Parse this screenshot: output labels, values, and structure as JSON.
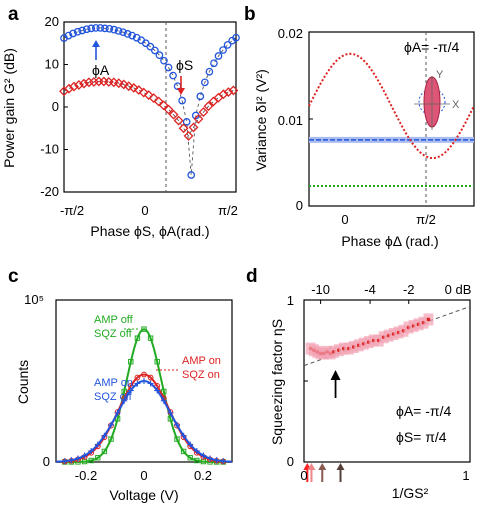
{
  "panels": {
    "a": {
      "label": "a"
    },
    "b": {
      "label": "b"
    },
    "c": {
      "label": "c"
    },
    "d": {
      "label": "d"
    }
  },
  "chart_data": [
    {
      "panel": "a",
      "type": "scatter",
      "xlabel": "Phase ϕS, ϕA(rad.)",
      "ylabel": "Power gain G² (dB)",
      "xlim": [
        -1.5708,
        1.5708
      ],
      "ylim": [
        -20,
        20
      ],
      "xticks": [
        {
          "v": -1.5708,
          "label": "-π/2"
        },
        {
          "v": 0,
          "label": "0"
        },
        {
          "v": 1.5708,
          "label": "π/2"
        }
      ],
      "yticks": [
        -20,
        -10,
        0,
        10,
        20
      ],
      "annotations": [
        "ϕA",
        "ϕS"
      ],
      "series": [
        {
          "color": "#2255dd",
          "marker": "circle",
          "x": [
            -1.571,
            -1.488,
            -1.405,
            -1.322,
            -1.239,
            -1.156,
            -1.073,
            -0.99,
            -0.907,
            -0.824,
            -0.741,
            -0.658,
            -0.575,
            -0.492,
            -0.409,
            -0.326,
            -0.243,
            -0.16,
            -0.077,
            0.006,
            0.089,
            0.172,
            0.255,
            0.338,
            0.421,
            0.504,
            0.587,
            0.67,
            0.753,
            0.836,
            0.919,
            1.002,
            1.085,
            1.168,
            1.251,
            1.334,
            1.417,
            1.5,
            1.571
          ],
          "y": [
            16.2,
            16.8,
            17.3,
            17.7,
            18.0,
            18.3,
            18.5,
            18.6,
            18.6,
            18.5,
            18.4,
            18.2,
            17.9,
            17.6,
            17.2,
            16.8,
            16.3,
            15.7,
            15.0,
            14.2,
            13.3,
            12.2,
            10.9,
            9.3,
            7.4,
            4.9,
            1.5,
            -3.5,
            -16.0,
            -2.0,
            2.5,
            5.8,
            8.3,
            10.3,
            12.0,
            13.4,
            14.6,
            15.6,
            16.3
          ]
        },
        {
          "color": "#dd2222",
          "marker": "diamond",
          "x": [
            -1.571,
            -1.48,
            -1.389,
            -1.298,
            -1.207,
            -1.116,
            -1.025,
            -0.934,
            -0.843,
            -0.752,
            -0.661,
            -0.57,
            -0.479,
            -0.388,
            -0.297,
            -0.206,
            -0.115,
            -0.024,
            0.067,
            0.158,
            0.249,
            0.34,
            0.431,
            0.522,
            0.613,
            0.704,
            0.795,
            0.886,
            0.977,
            1.068,
            1.159,
            1.25,
            1.341,
            1.432,
            1.523
          ],
          "y": [
            3.7,
            4.3,
            4.8,
            5.2,
            5.5,
            5.8,
            5.9,
            6.0,
            6.0,
            5.9,
            5.8,
            5.6,
            5.3,
            4.9,
            4.5,
            4.0,
            3.4,
            2.8,
            2.1,
            1.3,
            0.4,
            -0.6,
            -1.8,
            -3.2,
            -5.0,
            -6.8,
            -4.8,
            -2.8,
            -1.2,
            0.2,
            1.3,
            2.2,
            3.0,
            3.5,
            3.9
          ]
        }
      ]
    },
    {
      "panel": "b",
      "type": "line",
      "xlabel": "Phase ϕΔ (rad.)",
      "ylabel": "Variance δI² (V²)",
      "xlim": [
        -0.785,
        2.356
      ],
      "ylim": [
        0,
        0.02
      ],
      "xticks": [
        {
          "v": 0,
          "label": "0"
        },
        {
          "v": 1.5708,
          "label": "π/2"
        }
      ],
      "yticks": [
        {
          "v": 0,
          "label": "0"
        },
        {
          "v": 0.01,
          "label": "0.01"
        },
        {
          "v": 0.02,
          "label": "0.02"
        }
      ],
      "annotation": "ϕA= -π/4",
      "inset_axes": [
        "Y",
        "X"
      ],
      "series": [
        {
          "color": "#dd2222",
          "style": "dotted-line",
          "peak": 0.0175,
          "trough": 0.0055
        },
        {
          "color": "#2255dd",
          "style": "band",
          "value": 0.0076
        },
        {
          "color": "#22aa22",
          "style": "dotted-line",
          "value": 0.0023
        }
      ]
    },
    {
      "panel": "c",
      "type": "line",
      "xlabel": "Voltage (V)",
      "ylabel": "Counts",
      "xlim": [
        -0.3,
        0.3
      ],
      "ylim": [
        0,
        100000
      ],
      "xticks": [
        {
          "v": -0.2,
          "label": "-0.2"
        },
        {
          "v": 0,
          "label": "0"
        },
        {
          "v": 0.2,
          "label": "0.2"
        }
      ],
      "yticks": [
        {
          "v": 0,
          "label": "0"
        },
        {
          "v": 100000,
          "label": "10⁵"
        }
      ],
      "series": [
        {
          "name": "AMP off SQZ off",
          "color": "#22aa22",
          "marker": "square",
          "peak": 82000,
          "sigma": 0.06
        },
        {
          "name": "AMP on SQZ on",
          "color": "#dd2222",
          "marker": "circle",
          "peak": 54000,
          "sigma": 0.085
        },
        {
          "name": "AMP on SQZ off",
          "color": "#2255dd",
          "marker": "plus",
          "peak": 50000,
          "sigma": 0.09
        }
      ],
      "legend_labels": [
        {
          "line1": "AMP off",
          "line2": "SQZ off",
          "color": "#22aa22"
        },
        {
          "line1": "AMP on",
          "line2": "SQZ on",
          "color": "#dd2222"
        },
        {
          "line1": "AMP on",
          "line2": "SQZ off",
          "color": "#2255dd"
        }
      ]
    },
    {
      "panel": "d",
      "type": "scatter",
      "xlabel": "1/GS²",
      "ylabel": "Squeezing factor ηS",
      "xlim": [
        0,
        1
      ],
      "ylim": [
        0,
        1
      ],
      "xticks": [
        {
          "v": 0,
          "label": "0"
        },
        {
          "v": 1,
          "label": "1"
        }
      ],
      "yticks": [
        {
          "v": 0,
          "label": "0"
        },
        {
          "v": 0.5,
          "label": ""
        },
        {
          "v": 1,
          "label": "1"
        }
      ],
      "top_ticks": [
        {
          "v": 0.1,
          "label": "-10"
        },
        {
          "v": 0.398,
          "label": "-4"
        },
        {
          "v": 0.631,
          "label": "-2"
        },
        {
          "v": 1.0,
          "label": "0 dB"
        }
      ],
      "annotations": [
        "ϕA= -π/4",
        "ϕS=  π/4"
      ],
      "series": [
        {
          "color": "#dd2222",
          "marker": "dot",
          "x": [
            0.04,
            0.06,
            0.08,
            0.1,
            0.12,
            0.14,
            0.16,
            0.18,
            0.21,
            0.24,
            0.27,
            0.3,
            0.33,
            0.36,
            0.39,
            0.42,
            0.45,
            0.48,
            0.51,
            0.54,
            0.57,
            0.6,
            0.63,
            0.66,
            0.69,
            0.72,
            0.75
          ],
          "y": [
            0.7,
            0.69,
            0.68,
            0.67,
            0.67,
            0.68,
            0.67,
            0.68,
            0.69,
            0.7,
            0.7,
            0.71,
            0.72,
            0.73,
            0.74,
            0.75,
            0.75,
            0.77,
            0.78,
            0.79,
            0.8,
            0.81,
            0.83,
            0.84,
            0.85,
            0.86,
            0.88
          ]
        },
        {
          "color": "#555555",
          "style": "dashed-fit",
          "x": [
            0.0,
            1.0
          ],
          "y": [
            0.595,
            0.96
          ]
        }
      ],
      "arrows_bottom": [
        {
          "x": 0.02,
          "color": "#ff2222"
        },
        {
          "x": 0.045,
          "color": "#ee8888"
        },
        {
          "x": 0.11,
          "color": "#8a5a50"
        },
        {
          "x": 0.22,
          "color": "#55403a"
        }
      ],
      "arrow_marker_x": 0.19
    }
  ]
}
